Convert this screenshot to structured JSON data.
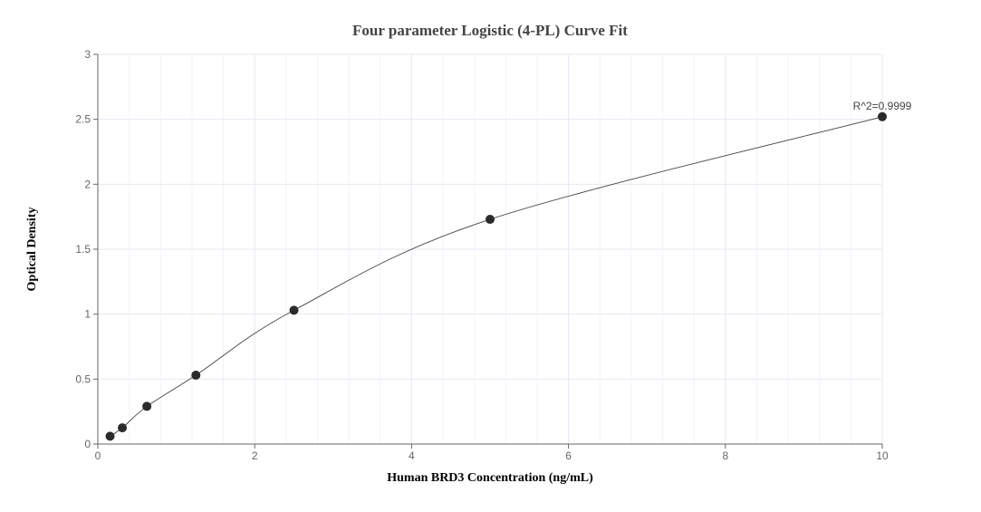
{
  "chart_data": {
    "type": "scatter",
    "title": "Four parameter Logistic (4-PL) Curve Fit",
    "xlabel": "Human BRD3 Concentration (ng/mL)",
    "ylabel": "Optical Density",
    "xlim": [
      0,
      10
    ],
    "ylim": [
      0,
      3
    ],
    "xticks": [
      "0",
      "2",
      "4",
      "6",
      "8",
      "10"
    ],
    "yticks": [
      "0",
      "0.5",
      "1",
      "1.5",
      "2",
      "2.5",
      "3"
    ],
    "grid": true,
    "annotation": "R^2=0.9999",
    "points": {
      "x": [
        0.156,
        0.3125,
        0.625,
        1.25,
        2.5,
        5,
        10
      ],
      "y": [
        0.06,
        0.125,
        0.29,
        0.53,
        1.03,
        1.73,
        2.52
      ]
    },
    "colors": {
      "points": "#2b2b2b",
      "line": "#444444",
      "grid": "#e6eaf2",
      "axis": "#666666"
    }
  }
}
